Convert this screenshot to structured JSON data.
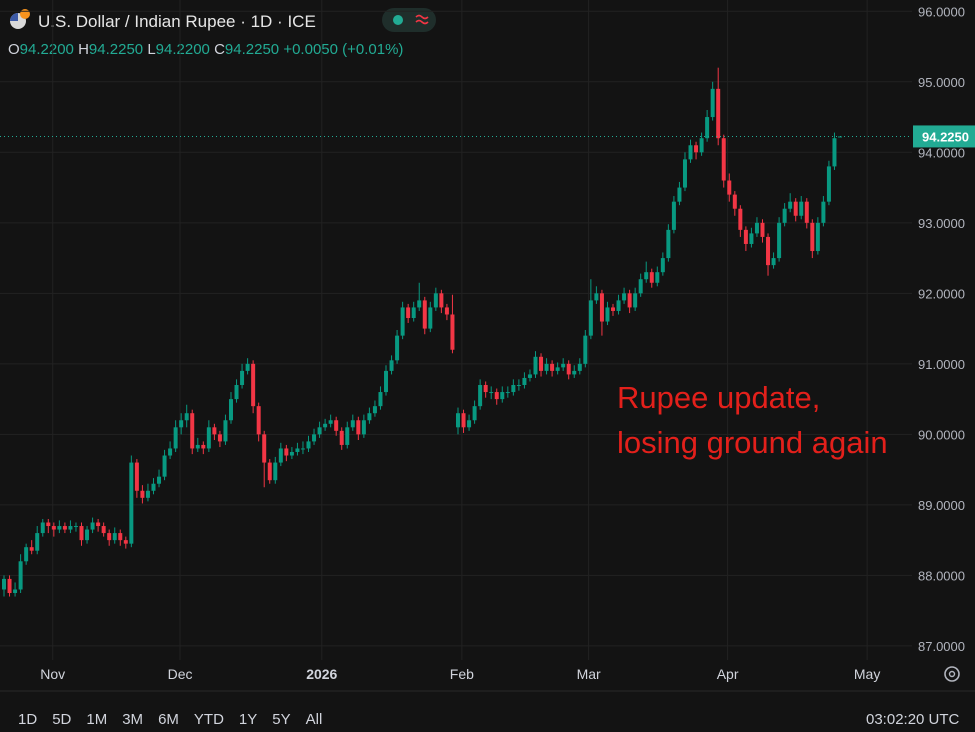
{
  "chart_data": {
    "type": "candlestick",
    "title": "U.S. Dollar / Indian Rupee · 1D · ICE",
    "header": {
      "o_label": "O",
      "open": "94.2200",
      "h_label": "H",
      "high": "94.2250",
      "l_label": "L",
      "low": "94.2200",
      "c_label": "C",
      "close": "94.2250",
      "change": "+0.0050 (+0.01%)"
    },
    "up_color": "#089981",
    "down_color": "#f23645",
    "grid": true,
    "ylim": [
      86.8,
      96.16
    ],
    "yticks": [
      {
        "value": 87,
        "label": "87.0000"
      },
      {
        "value": 88,
        "label": "88.0000"
      },
      {
        "value": 89,
        "label": "89.0000"
      },
      {
        "value": 90,
        "label": "90.0000"
      },
      {
        "value": 91,
        "label": "91.0000"
      },
      {
        "value": 92,
        "label": "92.0000"
      },
      {
        "value": 93,
        "label": "93.0000"
      },
      {
        "value": 94,
        "label": "94.0000"
      },
      {
        "value": 95,
        "label": "95.0000"
      },
      {
        "value": 96,
        "label": "96.0000"
      }
    ],
    "xticks": [
      {
        "value": 8.8,
        "label": "Nov"
      },
      {
        "value": 31.8,
        "label": "Dec"
      },
      {
        "value": 57.4,
        "label": "2026"
      },
      {
        "value": 82.7,
        "label": "Feb"
      },
      {
        "value": 105.6,
        "label": "Mar"
      },
      {
        "value": 130.7,
        "label": "Apr"
      },
      {
        "value": 155.9,
        "label": "May"
      }
    ],
    "last_price": {
      "value": 94.225,
      "label": "94.2250"
    },
    "annotation": [
      "Rupee update,",
      "losing ground again"
    ],
    "ohlc": [
      [
        87.8,
        88.0,
        87.7,
        87.95
      ],
      [
        87.95,
        88.0,
        87.7,
        87.75
      ],
      [
        87.75,
        87.9,
        87.7,
        87.8
      ],
      [
        87.8,
        88.3,
        87.75,
        88.2
      ],
      [
        88.2,
        88.45,
        88.15,
        88.4
      ],
      [
        88.4,
        88.5,
        88.3,
        88.35
      ],
      [
        88.35,
        88.7,
        88.3,
        88.6
      ],
      [
        88.6,
        88.8,
        88.55,
        88.75
      ],
      [
        88.75,
        88.8,
        88.6,
        88.7
      ],
      [
        88.7,
        88.75,
        88.55,
        88.65
      ],
      [
        88.65,
        88.78,
        88.6,
        88.7
      ],
      [
        88.7,
        88.75,
        88.6,
        88.65
      ],
      [
        88.65,
        88.78,
        88.6,
        88.7
      ],
      [
        88.7,
        88.75,
        88.62,
        88.7
      ],
      [
        88.7,
        88.75,
        88.42,
        88.5
      ],
      [
        88.5,
        88.7,
        88.45,
        88.65
      ],
      [
        88.65,
        88.82,
        88.6,
        88.75
      ],
      [
        88.75,
        88.8,
        88.62,
        88.7
      ],
      [
        88.7,
        88.75,
        88.55,
        88.6
      ],
      [
        88.6,
        88.65,
        88.42,
        88.5
      ],
      [
        88.5,
        88.68,
        88.45,
        88.6
      ],
      [
        88.6,
        88.65,
        88.42,
        88.5
      ],
      [
        88.5,
        88.55,
        88.38,
        88.45
      ],
      [
        88.45,
        89.7,
        88.4,
        89.6
      ],
      [
        89.6,
        89.65,
        89.1,
        89.2
      ],
      [
        89.2,
        89.28,
        89.02,
        89.1
      ],
      [
        89.1,
        89.3,
        89.05,
        89.2
      ],
      [
        89.2,
        89.38,
        89.15,
        89.3
      ],
      [
        89.3,
        89.5,
        89.25,
        89.4
      ],
      [
        89.4,
        89.78,
        89.35,
        89.7
      ],
      [
        89.7,
        89.9,
        89.65,
        89.8
      ],
      [
        89.8,
        90.2,
        89.75,
        90.1
      ],
      [
        90.1,
        90.3,
        90.0,
        90.2
      ],
      [
        90.2,
        90.42,
        90.1,
        90.3
      ],
      [
        90.3,
        90.35,
        89.72,
        89.8
      ],
      [
        89.8,
        89.95,
        89.75,
        89.85
      ],
      [
        89.85,
        89.9,
        89.72,
        89.8
      ],
      [
        89.8,
        90.2,
        89.75,
        90.1
      ],
      [
        90.1,
        90.15,
        89.92,
        90.0
      ],
      [
        90.0,
        90.05,
        89.82,
        89.9
      ],
      [
        89.9,
        90.28,
        89.85,
        90.2
      ],
      [
        90.2,
        90.6,
        90.15,
        90.5
      ],
      [
        90.5,
        90.78,
        90.45,
        90.7
      ],
      [
        90.7,
        91.0,
        90.65,
        90.9
      ],
      [
        90.9,
        91.08,
        90.85,
        91.0
      ],
      [
        91.0,
        91.05,
        90.3,
        90.4
      ],
      [
        90.4,
        90.45,
        89.9,
        90.0
      ],
      [
        90.0,
        90.05,
        89.25,
        89.6
      ],
      [
        89.6,
        89.65,
        89.3,
        89.35
      ],
      [
        89.35,
        89.68,
        89.3,
        89.6
      ],
      [
        89.6,
        89.88,
        89.55,
        89.8
      ],
      [
        89.8,
        89.85,
        89.62,
        89.7
      ],
      [
        89.7,
        89.82,
        89.65,
        89.75
      ],
      [
        89.75,
        89.88,
        89.7,
        89.8
      ],
      [
        89.8,
        89.9,
        89.72,
        89.8
      ],
      [
        89.8,
        89.98,
        89.75,
        89.9
      ],
      [
        89.9,
        90.08,
        89.85,
        90.0
      ],
      [
        90.0,
        90.18,
        89.95,
        90.1
      ],
      [
        90.1,
        90.22,
        90.05,
        90.15
      ],
      [
        90.15,
        90.28,
        90.1,
        90.2
      ],
      [
        90.2,
        90.25,
        89.98,
        90.05
      ],
      [
        90.05,
        90.1,
        89.78,
        89.85
      ],
      [
        89.85,
        90.18,
        89.8,
        90.1
      ],
      [
        90.1,
        90.28,
        90.05,
        90.2
      ],
      [
        90.2,
        90.25,
        89.92,
        90.0
      ],
      [
        90.0,
        90.28,
        89.95,
        90.2
      ],
      [
        90.2,
        90.38,
        90.15,
        90.3
      ],
      [
        90.3,
        90.48,
        90.25,
        90.4
      ],
      [
        90.4,
        90.68,
        90.35,
        90.6
      ],
      [
        90.6,
        90.98,
        90.55,
        90.9
      ],
      [
        90.9,
        91.12,
        90.85,
        91.05
      ],
      [
        91.05,
        91.48,
        91.0,
        91.4
      ],
      [
        91.4,
        91.88,
        91.35,
        91.8
      ],
      [
        91.8,
        91.85,
        91.58,
        91.65
      ],
      [
        91.65,
        91.88,
        91.6,
        91.8
      ],
      [
        91.8,
        92.15,
        91.75,
        91.9
      ],
      [
        91.9,
        91.95,
        91.42,
        91.5
      ],
      [
        91.5,
        91.88,
        91.45,
        91.8
      ],
      [
        91.8,
        92.08,
        91.75,
        92.0
      ],
      [
        92.0,
        92.05,
        91.72,
        91.8
      ],
      [
        91.8,
        91.85,
        91.62,
        91.7
      ],
      [
        91.7,
        91.98,
        91.15,
        91.2
      ],
      [
        90.1,
        90.38,
        90.0,
        90.3
      ],
      [
        90.3,
        90.35,
        90.02,
        90.1
      ],
      [
        90.1,
        90.28,
        90.05,
        90.2
      ],
      [
        90.2,
        90.48,
        90.15,
        90.4
      ],
      [
        90.4,
        90.78,
        90.35,
        90.7
      ],
      [
        90.7,
        90.75,
        90.52,
        90.6
      ],
      [
        90.6,
        90.68,
        90.5,
        90.6
      ],
      [
        90.6,
        90.65,
        90.42,
        90.5
      ],
      [
        90.5,
        90.68,
        90.45,
        90.6
      ],
      [
        90.6,
        90.68,
        90.52,
        90.6
      ],
      [
        90.6,
        90.78,
        90.55,
        90.7
      ],
      [
        90.7,
        90.78,
        90.62,
        90.7
      ],
      [
        90.7,
        90.88,
        90.65,
        90.8
      ],
      [
        90.8,
        90.92,
        90.75,
        90.85
      ],
      [
        90.85,
        91.18,
        90.8,
        91.1
      ],
      [
        91.1,
        91.15,
        90.82,
        90.9
      ],
      [
        90.9,
        91.08,
        90.85,
        91.0
      ],
      [
        91.0,
        91.05,
        90.82,
        90.9
      ],
      [
        90.9,
        91.02,
        90.85,
        90.95
      ],
      [
        90.95,
        91.08,
        90.9,
        91.0
      ],
      [
        91.0,
        91.05,
        90.78,
        90.85
      ],
      [
        90.85,
        90.98,
        90.8,
        90.9
      ],
      [
        90.9,
        91.08,
        90.85,
        91.0
      ],
      [
        91.0,
        91.48,
        90.95,
        91.4
      ],
      [
        91.4,
        92.2,
        91.35,
        91.9
      ],
      [
        91.9,
        92.1,
        91.85,
        92.0
      ],
      [
        92.0,
        92.05,
        91.4,
        91.6
      ],
      [
        91.6,
        91.88,
        91.55,
        91.8
      ],
      [
        91.8,
        91.85,
        91.68,
        91.75
      ],
      [
        91.75,
        91.98,
        91.7,
        91.9
      ],
      [
        91.9,
        92.08,
        91.85,
        92.0
      ],
      [
        92.0,
        92.05,
        91.72,
        91.8
      ],
      [
        91.8,
        92.08,
        91.75,
        92.0
      ],
      [
        92.0,
        92.28,
        91.95,
        92.2
      ],
      [
        92.2,
        92.45,
        92.15,
        92.3
      ],
      [
        92.3,
        92.35,
        92.08,
        92.15
      ],
      [
        92.15,
        92.38,
        92.1,
        92.3
      ],
      [
        92.3,
        92.58,
        92.25,
        92.5
      ],
      [
        92.5,
        92.98,
        92.45,
        92.9
      ],
      [
        92.9,
        93.38,
        92.85,
        93.3
      ],
      [
        93.3,
        93.58,
        93.25,
        93.5
      ],
      [
        93.5,
        94.0,
        93.45,
        93.9
      ],
      [
        93.9,
        94.18,
        93.85,
        94.1
      ],
      [
        94.1,
        94.15,
        93.9,
        94.0
      ],
      [
        94.0,
        94.28,
        93.95,
        94.2
      ],
      [
        94.2,
        94.6,
        94.15,
        94.5
      ],
      [
        94.5,
        95.0,
        94.45,
        94.9
      ],
      [
        94.9,
        95.2,
        94.1,
        94.2
      ],
      [
        94.2,
        94.25,
        93.5,
        93.6
      ],
      [
        93.6,
        93.7,
        93.3,
        93.4
      ],
      [
        93.4,
        93.45,
        93.1,
        93.2
      ],
      [
        93.2,
        93.25,
        92.8,
        92.9
      ],
      [
        92.9,
        92.95,
        92.6,
        92.7
      ],
      [
        92.7,
        92.93,
        92.65,
        92.85
      ],
      [
        92.85,
        93.08,
        92.8,
        93.0
      ],
      [
        93.0,
        93.05,
        92.72,
        92.8
      ],
      [
        92.8,
        92.85,
        92.25,
        92.4
      ],
      [
        92.4,
        92.58,
        92.35,
        92.5
      ],
      [
        92.5,
        93.08,
        92.45,
        93.0
      ],
      [
        93.0,
        93.28,
        92.95,
        93.2
      ],
      [
        93.2,
        93.42,
        93.15,
        93.3
      ],
      [
        93.3,
        93.35,
        93.02,
        93.1
      ],
      [
        93.1,
        93.38,
        93.05,
        93.3
      ],
      [
        93.3,
        93.35,
        92.92,
        93.0
      ],
      [
        93.0,
        93.05,
        92.5,
        92.6
      ],
      [
        92.6,
        93.08,
        92.55,
        93.0
      ],
      [
        93.0,
        93.38,
        92.95,
        93.3
      ],
      [
        93.3,
        93.88,
        93.25,
        93.8
      ],
      [
        93.8,
        94.28,
        93.75,
        94.2
      ],
      [
        94.22,
        94.225,
        94.22,
        94.225
      ]
    ],
    "ranges": [
      "1D",
      "5D",
      "1M",
      "3M",
      "6M",
      "YTD",
      "1Y",
      "5Y",
      "All"
    ],
    "clock": "03:02:20 UTC"
  }
}
